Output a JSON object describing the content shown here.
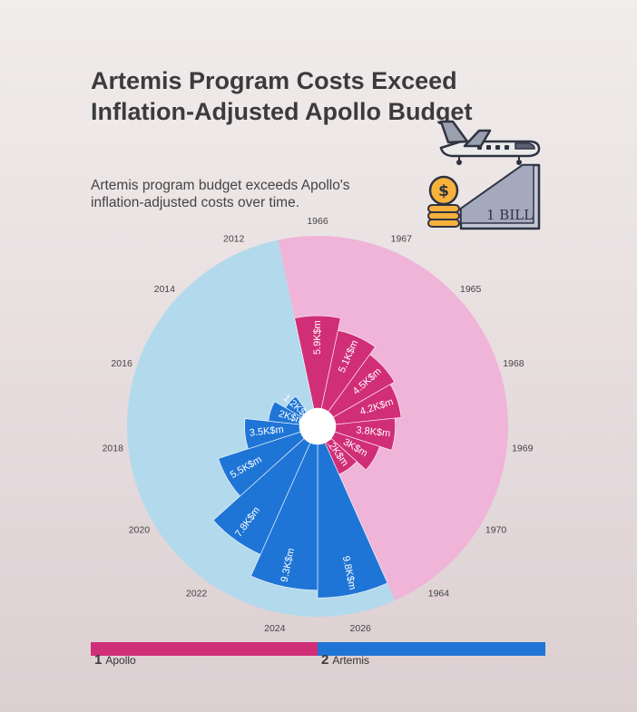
{
  "header": {
    "title": "Artemis Program Costs Exceed Inflation-Adjusted Apollo Budget",
    "subtitle": "Artemis program budget exceeds Apollo's inflation-adjusted costs over time."
  },
  "illustration": {
    "icons": [
      "airplane-icon",
      "dollar-coin-stack-icon",
      "rising-ramp-icon"
    ],
    "label": "1 BILL"
  },
  "colors": {
    "apollo": "#d12e78",
    "artemis": "#1f75d6",
    "apollo_background": "#efb4d8",
    "artemis_background": "#b3d9ec"
  },
  "legend": {
    "items": [
      {
        "number": "1",
        "label": "Apollo"
      },
      {
        "number": "2",
        "label": "Artemis"
      }
    ]
  },
  "chart_data": {
    "type": "polar-bar",
    "value_suffix": "K$m",
    "series": [
      {
        "name": "Apollo",
        "points": [
          {
            "year": "1966",
            "value": 5.9
          },
          {
            "year": "1967",
            "value": 5.1
          },
          {
            "year": "1965",
            "value": 4.5
          },
          {
            "year": "1968",
            "value": 4.2
          },
          {
            "year": "1969",
            "value": 3.8
          },
          {
            "year": "1970",
            "value": 3.0
          },
          {
            "year": "1964",
            "value": 2.2
          }
        ]
      },
      {
        "name": "Artemis",
        "points": [
          {
            "year": "2026",
            "value": 9.8
          },
          {
            "year": "2024",
            "value": 9.3
          },
          {
            "year": "2022",
            "value": 7.8
          },
          {
            "year": "2020",
            "value": 5.5
          },
          {
            "year": "2018",
            "value": 3.5
          },
          {
            "year": "2016",
            "value": 2.0
          },
          {
            "year": "2014",
            "value": 1.2
          },
          {
            "year": "2012",
            "value": 0.0
          }
        ]
      }
    ],
    "angular_categories": [
      "1966",
      "1967",
      "1965",
      "1968",
      "1969",
      "1970",
      "1964",
      "2026",
      "2024",
      "2022",
      "2020",
      "2018",
      "2016",
      "2014",
      "2012"
    ],
    "r_range": [
      0,
      11
    ]
  }
}
